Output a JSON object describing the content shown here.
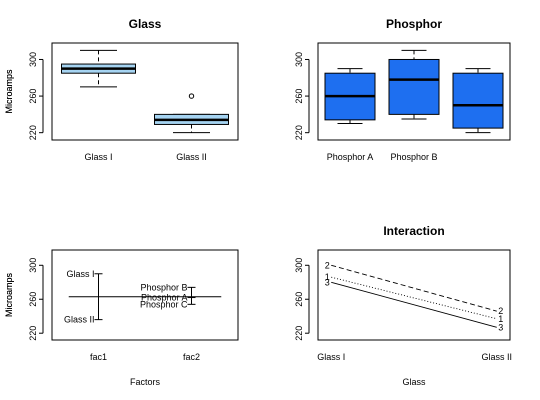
{
  "chart_data": [
    {
      "type": "box",
      "title": "Glass",
      "ylabel": "Microamps",
      "xlabel": "",
      "ylim": [
        212,
        318
      ],
      "yticks": [
        220,
        260,
        300
      ],
      "categories": [
        "Glass I",
        "Glass II"
      ],
      "fill": "#a6d4f2",
      "boxes": [
        {
          "min": 270,
          "q1": 285,
          "median": 290,
          "q3": 295,
          "max": 310,
          "outliers": []
        },
        {
          "min": 220,
          "q1": 229,
          "median": 234,
          "q3": 240,
          "max": 240,
          "outliers": [
            260
          ]
        }
      ]
    },
    {
      "type": "box",
      "title": "Phosphor",
      "ylabel": "Microamps",
      "xlabel": "",
      "ylim": [
        212,
        318
      ],
      "yticks": [
        220,
        260,
        300
      ],
      "categories": [
        "Phosphor A",
        "Phosphor B",
        ""
      ],
      "fill": "#1e6ff0",
      "boxes": [
        {
          "min": 230,
          "q1": 234,
          "median": 260,
          "q3": 285,
          "max": 290,
          "outliers": []
        },
        {
          "min": 235,
          "q1": 240,
          "median": 278,
          "q3": 300,
          "max": 310,
          "outliers": []
        },
        {
          "min": 220,
          "q1": 225,
          "median": 250,
          "q3": 285,
          "max": 290,
          "outliers": []
        }
      ]
    },
    {
      "type": "design",
      "title": "",
      "ylabel": "Microamps",
      "xlabel": "Factors",
      "ylim": [
        212,
        318
      ],
      "yticks": [
        220,
        260,
        300
      ],
      "categories": [
        "fac1",
        "fac2"
      ],
      "grand_mean": 263,
      "factors": [
        {
          "levels": [
            {
              "label": "Glass I",
              "value": 290
            },
            {
              "label": "Glass II",
              "value": 236
            }
          ]
        },
        {
          "levels": [
            {
              "label": "Phosphor B",
              "value": 274
            },
            {
              "label": "Phosphor A",
              "value": 262
            },
            {
              "label": "Phosphor C",
              "value": 254
            }
          ]
        }
      ]
    },
    {
      "type": "line",
      "title": "Interaction",
      "ylabel": "Microamps",
      "xlabel": "Glass",
      "ylim": [
        212,
        318
      ],
      "yticks": [
        220,
        260,
        300
      ],
      "categories": [
        "Glass I",
        "Glass II"
      ],
      "series": [
        {
          "name": "2",
          "values": [
            300,
            246
          ],
          "dash": "5,3"
        },
        {
          "name": "1",
          "values": [
            286,
            237
          ],
          "dash": "1,2"
        },
        {
          "name": "3",
          "values": [
            280,
            227
          ],
          "dash": ""
        }
      ]
    }
  ]
}
